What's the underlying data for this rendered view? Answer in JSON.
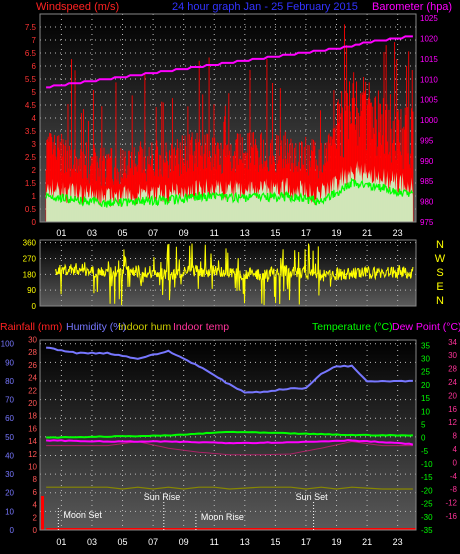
{
  "header": {
    "left_label": "Windspeed (m/s)",
    "center_label": "24 hour graph Jan - 25 February 2015",
    "right_label": "Barometer (hpa)"
  },
  "x_ticks": [
    "01",
    "03",
    "05",
    "07",
    "09",
    "11",
    "13",
    "15",
    "17",
    "19",
    "21",
    "23"
  ],
  "wind_axis": [
    "0",
    "0.5",
    "1",
    "1.5",
    "2",
    "2.5",
    "3",
    "3.5",
    "4",
    "4.5",
    "5",
    "5.5",
    "6",
    "6.5",
    "7",
    "7.5"
  ],
  "baro_axis": [
    "975",
    "980",
    "985",
    "990",
    "995",
    "1000",
    "1005",
    "1010",
    "1015",
    "1020",
    "1025"
  ],
  "dir_axis": [
    "0",
    "90",
    "180",
    "270",
    "360"
  ],
  "compass": [
    "N",
    "W",
    "S",
    "E",
    "N"
  ],
  "bottom_labels": {
    "rain": "Rainfall (mm)",
    "humidity": "Humidity (%)",
    "indoor_hum": "Indoor hum",
    "indoor_temp": "Indoor temp",
    "temp": "Temperature (°C)",
    "dew": "Dew Point (°C)"
  },
  "left_axis_bottom": [
    "0",
    "10",
    "20",
    "30",
    "40",
    "50",
    "60",
    "70",
    "80",
    "90",
    "100"
  ],
  "rain_axis_bottom": [
    "0",
    "2",
    "4",
    "6",
    "8",
    "10",
    "12",
    "14",
    "16",
    "18",
    "20",
    "22",
    "24",
    "26",
    "28",
    "30"
  ],
  "temp_axis": [
    "-35",
    "-30",
    "-25",
    "-20",
    "-15",
    "-10",
    "-5",
    "0",
    "5",
    "10",
    "15",
    "20",
    "25",
    "30",
    "35"
  ],
  "dew_axis": [
    "-16",
    "-12",
    "-8",
    "-4",
    "0",
    "4",
    "8",
    "12",
    "16",
    "20",
    "24",
    "28",
    "30",
    "34"
  ],
  "events": {
    "moon_set": "Moon Set",
    "sun_rise": "Sun Rise",
    "moon_rise": "Moon Rise",
    "sun_set": "Sun Set"
  },
  "colors": {
    "wind": "#ff0000",
    "gust": "#ccffcc",
    "avg": "#00ff00",
    "baro": "#ff00ff",
    "dir": "#ffff00",
    "humidity": "#7777ff",
    "temp": "#00ff00",
    "dew": "#ff00ff",
    "indoor_temp": "#aa2266",
    "indoor_hum": "#888800",
    "rain": "#ff0000"
  },
  "chart_data": [
    {
      "type": "line",
      "title": "24 hour graph Jan - 25 February 2015",
      "ylabel": "Windspeed (m/s)",
      "y2label": "Barometer (hpa)",
      "x_range": [
        0,
        24
      ],
      "ylim": [
        0,
        8
      ],
      "y2lim": [
        975,
        1025
      ],
      "series": [
        {
          "name": "Barometer (hpa)",
          "x": [
            0,
            2,
            4,
            6,
            8,
            10,
            12,
            14,
            16,
            18,
            19,
            20,
            21,
            22,
            23,
            24
          ],
          "values": [
            1008,
            1009,
            1010,
            1011,
            1012,
            1013,
            1014,
            1015,
            1016,
            1017,
            1017.5,
            1018,
            1019,
            1019.5,
            1020,
            1020.5
          ]
        },
        {
          "name": "Windspeed (m/s)",
          "x": [
            0,
            2,
            4,
            6,
            8,
            10,
            12,
            14,
            16,
            18,
            19,
            20,
            21,
            22,
            23,
            24
          ],
          "values": [
            2.4,
            2.0,
            1.7,
            1.9,
            2.0,
            2.4,
            2.2,
            2.3,
            2.3,
            1.9,
            2.7,
            3.6,
            3.4,
            3.1,
            2.8,
            2.4
          ]
        }
      ]
    },
    {
      "type": "scatter",
      "ylabel": "Wind direction",
      "ylim": [
        0,
        360
      ],
      "series": [
        {
          "name": "Direction",
          "x": [
            0,
            2,
            4,
            6,
            8,
            10,
            12,
            14,
            16,
            18,
            20,
            22,
            24
          ],
          "values": [
            200,
            210,
            190,
            200,
            180,
            200,
            190,
            180,
            200,
            170,
            185,
            190,
            190
          ]
        }
      ]
    },
    {
      "type": "line",
      "ylabel": "Temperature (°C)",
      "y2label": "Dew Point (°C)",
      "x_range": [
        0,
        24
      ],
      "ylim": [
        -35,
        35
      ],
      "series": [
        {
          "name": "Humidity (%)",
          "x": [
            0,
            2,
            4,
            6,
            8,
            10,
            12,
            13,
            14,
            16,
            17,
            18,
            19,
            20,
            21,
            22,
            24
          ],
          "values": [
            98,
            95,
            95,
            92,
            96,
            88,
            78,
            74,
            74,
            76,
            76,
            84,
            88,
            88,
            80,
            80,
            80
          ]
        },
        {
          "name": "Temperature (°C)",
          "x": [
            0,
            4,
            8,
            12,
            16,
            20,
            24
          ],
          "values": [
            0,
            0.4,
            0.8,
            2.2,
            1.6,
            1.0,
            0.8
          ]
        },
        {
          "name": "Dew Point (°C)",
          "x": [
            0,
            4,
            8,
            12,
            16,
            20,
            24
          ],
          "values": [
            -1,
            -1.5,
            -1.5,
            -2,
            -1.8,
            -1,
            -2.5
          ]
        },
        {
          "name": "Indoor temp",
          "x": [
            0,
            4,
            6,
            8,
            10,
            12,
            14,
            16,
            18,
            20,
            22,
            24
          ],
          "values": [
            -3,
            -3,
            -1.5,
            -4,
            -5.5,
            -6.5,
            -6.5,
            -6.2,
            -4,
            -1.5,
            -3,
            -3
          ]
        },
        {
          "name": "Indoor hum",
          "x": [
            0,
            2,
            4,
            5,
            6,
            7,
            8,
            9,
            10,
            11,
            12,
            14,
            16,
            17,
            18,
            19,
            20,
            22,
            24
          ],
          "values": [
            23,
            23,
            23,
            22,
            23,
            22,
            23,
            22,
            23,
            23,
            22,
            23,
            23,
            22,
            23,
            22,
            23,
            22,
            22
          ]
        }
      ],
      "events": [
        {
          "label": "Moon Set",
          "x": 0.8
        },
        {
          "label": "Sun Rise",
          "x": 7.7
        },
        {
          "label": "Moon Rise",
          "x": 9.8
        },
        {
          "label": "Sun Set",
          "x": 17.5
        }
      ]
    }
  ]
}
